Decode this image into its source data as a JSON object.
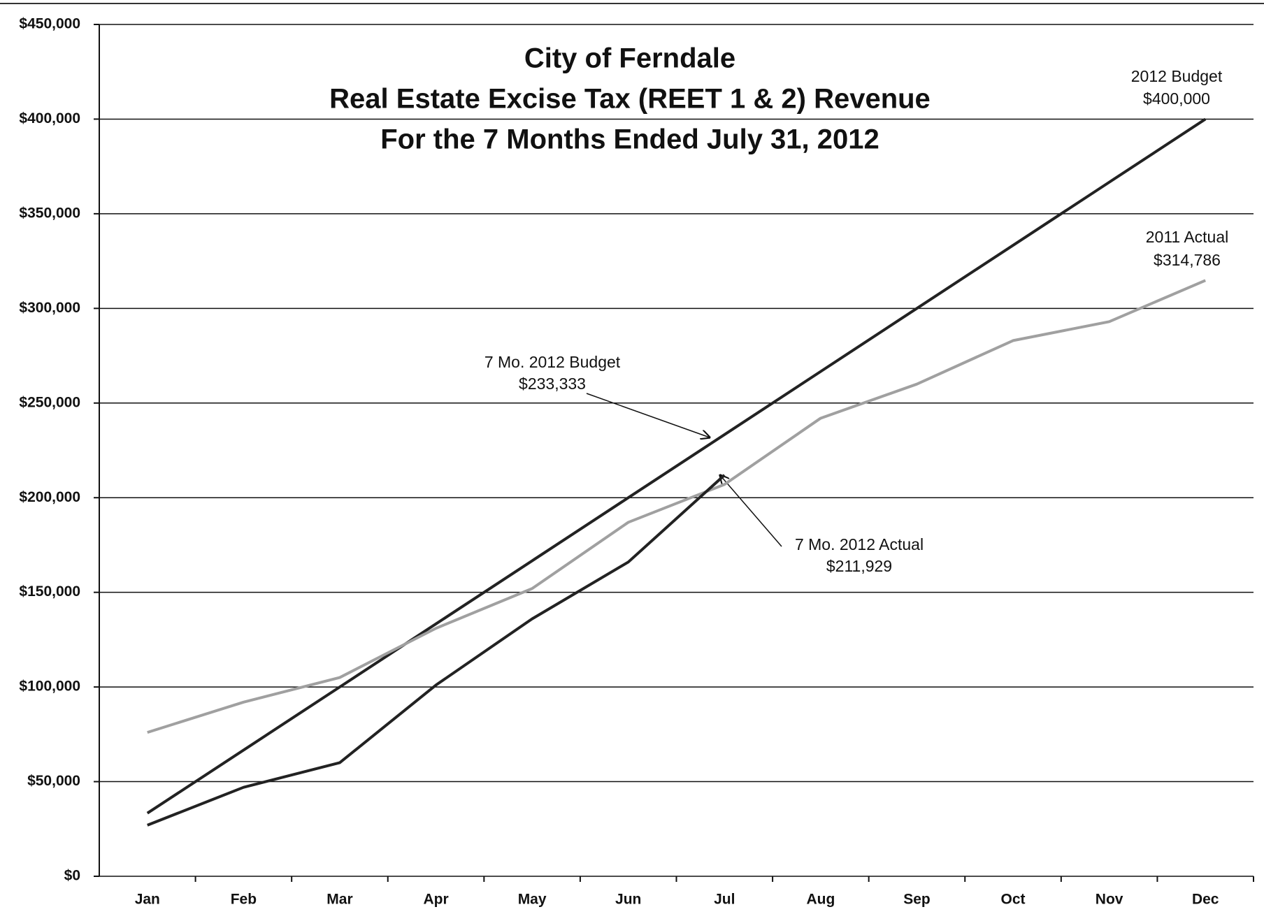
{
  "chart_data": {
    "type": "line",
    "title": [
      "City of Ferndale",
      "Real Estate Excise Tax (REET 1 & 2) Revenue",
      "For the 7 Months Ended July 31, 2012"
    ],
    "categories": [
      "Jan",
      "Feb",
      "Mar",
      "Apr",
      "May",
      "Jun",
      "Jul",
      "Aug",
      "Sep",
      "Oct",
      "Nov",
      "Dec"
    ],
    "series": [
      {
        "color": "#222222",
        "values": [
          33333,
          66667,
          100000,
          133333,
          166667,
          200000,
          233333,
          266667,
          300000,
          333333,
          366667,
          400000
        ]
      },
      {
        "color": "#a0a0a0",
        "values": [
          76000,
          92000,
          105000,
          131000,
          152000,
          187000,
          207000,
          242000,
          260000,
          283000,
          293000,
          314786
        ]
      },
      {
        "color": "#222222",
        "values": [
          27000,
          47000,
          60000,
          101000,
          136000,
          166000,
          211929,
          null,
          null,
          null,
          null,
          null
        ]
      }
    ],
    "annotations": [
      {
        "lines": [
          "2012 Budget",
          "$400,000"
        ]
      },
      {
        "lines": [
          "2011 Actual",
          "$314,786"
        ]
      },
      {
        "lines": [
          "7 Mo. 2012 Budget",
          "$233,333"
        ]
      },
      {
        "lines": [
          "7 Mo. 2012 Actual",
          "$211,929"
        ]
      }
    ],
    "ylim": [
      0,
      450000
    ],
    "yticks": [
      {
        "value": 0,
        "label": "$0"
      },
      {
        "value": 50000,
        "label": "$50,000"
      },
      {
        "value": 100000,
        "label": "$100,000"
      },
      {
        "value": 150000,
        "label": "$150,000"
      },
      {
        "value": 200000,
        "label": "$200,000"
      },
      {
        "value": 250000,
        "label": "$250,000"
      },
      {
        "value": 300000,
        "label": "$300,000"
      },
      {
        "value": 350000,
        "label": "$350,000"
      },
      {
        "value": 400000,
        "label": "$400,000"
      },
      {
        "value": 450000,
        "label": "$450,000"
      }
    ],
    "grid": true
  }
}
